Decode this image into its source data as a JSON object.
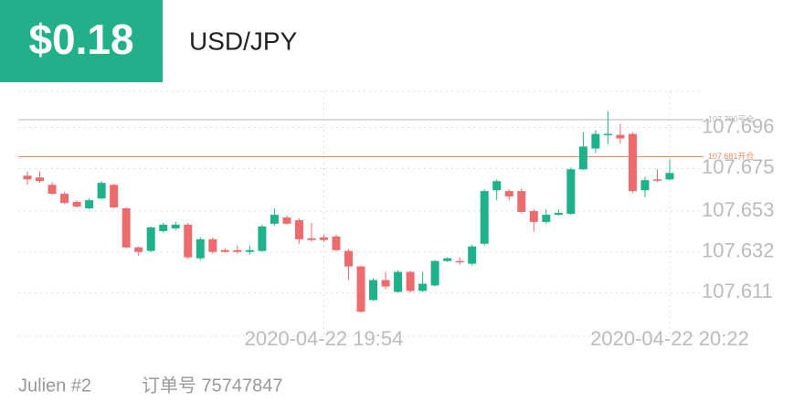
{
  "badge": "$0.18",
  "pair": "USD/JPY",
  "footer": {
    "account": "Julien #2",
    "order": "订单号 75747847"
  },
  "chart_data": {
    "type": "candlestick",
    "categories": [
      null,
      null,
      null,
      null,
      null,
      null,
      null,
      null,
      null,
      null,
      null,
      null,
      null,
      null,
      null,
      null,
      null,
      null,
      null,
      null,
      null,
      null,
      null,
      null,
      "2020-04-22 19:54",
      null,
      null,
      null,
      null,
      null,
      null,
      null,
      null,
      null,
      null,
      null,
      null,
      null,
      null,
      null,
      null,
      null,
      null,
      null,
      null,
      null,
      null,
      null,
      null,
      null,
      null,
      null,
      "2020-04-22 20:22"
    ],
    "open": [
      107.6712,
      107.6703,
      107.6665,
      107.6619,
      107.6577,
      107.6544,
      107.6595,
      107.6665,
      107.6544,
      107.6343,
      107.6325,
      107.6427,
      107.6441,
      107.646,
      107.6287,
      107.6385,
      107.6329,
      107.6329,
      107.632,
      107.6325,
      107.6465,
      107.6497,
      107.6483,
      107.639,
      107.6395,
      107.6399,
      107.6325,
      107.6245,
      107.6072,
      107.6175,
      107.6114,
      107.6217,
      107.6119,
      107.6147,
      107.6273,
      107.6273,
      107.6259,
      107.6362,
      107.6637,
      107.6633,
      107.6633,
      107.653,
      107.6474,
      107.6511,
      107.6516,
      107.6745,
      107.6852,
      107.6922,
      107.6922,
      107.6927,
      107.6637,
      107.6693,
      107.6693
    ],
    "high": [
      107.6735,
      107.6735,
      107.6679,
      107.6628,
      107.6586,
      107.6595,
      107.6684,
      107.667,
      107.6549,
      107.6348,
      107.6451,
      107.6469,
      107.6474,
      107.6469,
      107.6395,
      107.6395,
      107.6339,
      107.6353,
      107.6353,
      107.646,
      107.6544,
      107.6507,
      107.6493,
      107.6469,
      107.6409,
      107.6409,
      107.6334,
      107.625,
      107.6184,
      107.6217,
      107.6226,
      107.6222,
      107.6217,
      107.6278,
      107.6292,
      107.6292,
      107.6357,
      107.6642,
      107.6693,
      107.6642,
      107.6647,
      107.6539,
      107.6539,
      107.6539,
      107.6754,
      107.6936,
      107.6946,
      107.7044,
      107.6978,
      107.6936,
      107.6707,
      107.6745,
      107.6796
    ],
    "low": [
      107.6665,
      107.6675,
      107.6614,
      107.6567,
      107.6549,
      107.6539,
      107.6591,
      107.6544,
      107.6339,
      107.6301,
      107.632,
      107.6418,
      107.6432,
      107.6282,
      107.6278,
      107.6311,
      107.6315,
      107.6311,
      107.6306,
      107.632,
      107.6455,
      107.646,
      107.6362,
      107.6371,
      107.6371,
      107.6325,
      107.6175,
      107.6007,
      107.6068,
      107.6128,
      107.611,
      107.611,
      107.6114,
      107.6142,
      107.6268,
      107.6254,
      107.625,
      107.6353,
      107.6586,
      107.6586,
      107.6521,
      107.6423,
      107.6465,
      107.6507,
      107.6511,
      107.674,
      107.6829,
      107.6876,
      107.6876,
      107.6623,
      107.66,
      107.6679,
      107.6689
    ],
    "close": [
      107.6693,
      107.6684,
      107.6619,
      107.6572,
      107.6553,
      107.6586,
      107.6675,
      107.6549,
      107.6343,
      107.632,
      107.6446,
      107.646,
      107.646,
      107.6292,
      107.6385,
      107.632,
      107.632,
      107.632,
      107.6329,
      107.6451,
      107.6511,
      107.6465,
      107.6385,
      107.6381,
      107.6381,
      107.6329,
      107.6245,
      107.6012,
      107.6175,
      107.6142,
      107.6217,
      107.6119,
      107.6156,
      107.6273,
      107.6287,
      107.6268,
      107.6348,
      107.6633,
      107.6684,
      107.6605,
      107.6525,
      107.6474,
      107.6511,
      107.6521,
      107.6745,
      107.6862,
      107.6927,
      107.6927,
      107.6904,
      107.6633,
      107.6689,
      107.6689,
      107.6726
    ],
    "up_color": "#1fb189",
    "down_color": "#ec6b6d",
    "ylim": [
      107.5886,
      107.7146
    ],
    "yticks": [
      107.611,
      107.632,
      107.653,
      107.675,
      107.696
    ],
    "grid": true,
    "price_lines": [
      {
        "value": 107.7,
        "label": "107.700平仓",
        "color": "#b5b5b5"
      },
      {
        "value": 107.681,
        "label": "107.681开仓",
        "color": "#f08a64"
      }
    ]
  }
}
